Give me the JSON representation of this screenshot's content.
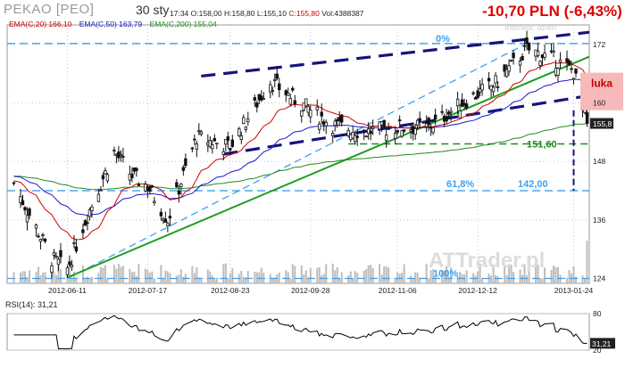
{
  "header": {
    "ticker": "PEKAO [PEO]",
    "date": "30 sty",
    "time": "17:34",
    "open": "O:158,00",
    "high": "H:158,80",
    "low": "L:155,10",
    "close": "C:155,80",
    "volume": "Vol:4388387",
    "change": "-10,70 PLN (-6,43%)"
  },
  "legend": {
    "ema20": "EMA(C,20) 166,10",
    "ema50": "EMA(C,50) 163,79",
    "ema200": "EMA(C,200) 155,04"
  },
  "colors": {
    "ema20": "#d40000",
    "ema50": "#1a1acc",
    "ema200": "#208a20",
    "trendline": "#1f9e1f",
    "channel": "#14147a",
    "fib": "#3da0f0",
    "price_label": "#ffffff",
    "gap": "#f7b9b9",
    "candle": "#111111",
    "volume": "#bdbdbd"
  },
  "annotations": {
    "fib_top": "0%",
    "fib_mid": "61,8%",
    "fib_bottom": "100%",
    "level_142": "142,00",
    "level_151": "151,60",
    "luka": "luka",
    "watermark": "ATTrader.pl",
    "watermark_top": "Interwał: dzień"
  },
  "chart_data": [
    {
      "type": "candlestick",
      "title": "PEKAO [PEO]",
      "x_dates": [
        "2012-06-11",
        "2012-07-17",
        "2012-08-23",
        "2012-09-28",
        "2012-11-06",
        "2012-12-12",
        "2013-01-24"
      ],
      "yticks": [
        124,
        136,
        148,
        160,
        172
      ],
      "ylim": [
        123,
        176
      ],
      "last_price": "155,8",
      "gap_level": "160",
      "levels": {
        "fib_0": 172.2,
        "fib_618": 142.0,
        "fib_100": 124.0,
        "support": 151.6
      },
      "price_anchors": [
        {
          "date": "2012-05-18",
          "close": 143.5
        },
        {
          "date": "2012-06-04",
          "close": 128.0
        },
        {
          "date": "2012-06-11",
          "close": 126.0
        },
        {
          "date": "2012-06-20",
          "close": 137.0
        },
        {
          "date": "2012-07-02",
          "close": 150.0
        },
        {
          "date": "2012-07-10",
          "close": 145.0
        },
        {
          "date": "2012-07-17",
          "close": 143.0
        },
        {
          "date": "2012-07-26",
          "close": 136.0
        },
        {
          "date": "2012-08-08",
          "close": 153.0
        },
        {
          "date": "2012-08-23",
          "close": 151.0
        },
        {
          "date": "2012-09-10",
          "close": 164.5
        },
        {
          "date": "2012-09-20",
          "close": 161.0
        },
        {
          "date": "2012-10-08",
          "close": 155.5
        },
        {
          "date": "2012-10-22",
          "close": 154.0
        },
        {
          "date": "2012-11-06",
          "close": 155.0
        },
        {
          "date": "2012-11-20",
          "close": 155.0
        },
        {
          "date": "2012-12-05",
          "close": 160.0
        },
        {
          "date": "2012-12-20",
          "close": 164.0
        },
        {
          "date": "2013-01-03",
          "close": 171.0
        },
        {
          "date": "2013-01-15",
          "close": 169.0
        },
        {
          "date": "2013-01-24",
          "close": 166.5
        },
        {
          "date": "2013-01-30",
          "close": 155.8
        }
      ]
    },
    {
      "type": "line",
      "title": "RSI(14): 31,21",
      "series": [
        {
          "name": "RSI(14)",
          "last": "31,21"
        }
      ],
      "yticks": [
        20,
        80
      ],
      "ylim": [
        20,
        80
      ],
      "x_dates": [
        "2012-06-11",
        "2012-07-17",
        "2012-08-23",
        "2012-09-28",
        "2012-11-06",
        "2012-12-12",
        "2013-01-24"
      ]
    }
  ]
}
